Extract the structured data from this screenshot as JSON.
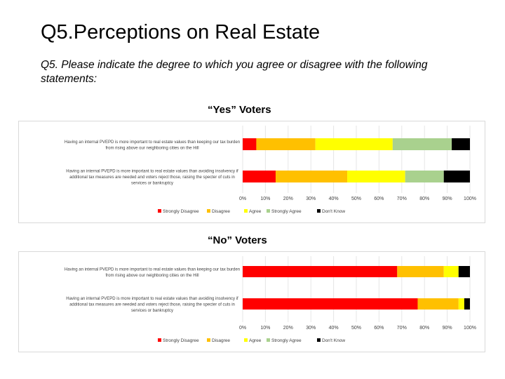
{
  "slide": {
    "title": "Q5.Perceptions on Real Estate",
    "subtitle": "Q5. Please indicate the degree to which you agree or disagree with the following statements:"
  },
  "colors": {
    "Strongly Disagree": "#ff0000",
    "Disagree": "#ffc000",
    "Agree": "#ffff00",
    "Strongly Agree": "#a9d18e",
    "Don't Know": "#000000"
  },
  "chart_data": [
    {
      "type": "bar",
      "orientation": "horizontal-stacked",
      "title": "“Yes” Voters",
      "categories": [
        "Having an internal PVEPD is more important to real estate values than keeping our tax burden from rising above our neighboring cities on the Hill",
        "Having an internal PVEPD is more important to real estate values than avoiding insolvency if additional tax measures are needed and voters reject those, raising the specter of cuts in services or bankruptcy"
      ],
      "category_lines": [
        [
          "Having an internal PVEPD is more important to real estate values than keeping our tax burden",
          "from rising above our neighboring cities on the Hill"
        ],
        [
          "Having an internal PVEPD is more important to real estate values than avoiding insolvency if",
          "additional tax measures are needed and voters reject those, raising the specter of cuts in",
          "services or bankruptcy"
        ]
      ],
      "series": [
        {
          "name": "Strongly Disagree",
          "values": [
            6,
            14.5
          ]
        },
        {
          "name": "Disagree",
          "values": [
            26,
            31.5
          ]
        },
        {
          "name": "Agree",
          "values": [
            34,
            25.5
          ]
        },
        {
          "name": "Strongly Agree",
          "values": [
            26,
            17
          ]
        },
        {
          "name": "Don't Know",
          "values": [
            8,
            11.5
          ]
        }
      ],
      "xlim": [
        0,
        100
      ],
      "x_ticks": [
        "0%",
        "10%",
        "20%",
        "30%",
        "40%",
        "50%",
        "60%",
        "70%",
        "80%",
        "90%",
        "100%"
      ],
      "legend": "bottom"
    },
    {
      "type": "bar",
      "orientation": "horizontal-stacked",
      "title": "“No” Voters",
      "categories": [
        "Having an internal PVEPD is more important to real estate values than keeping our tax burden from rising above our neighboring cities on the Hill",
        "Having an internal PVEPD is more important to real estate values than avoiding insolvency if additional tax measures are needed and voters reject those, raising the specter of cuts in services or bankruptcy"
      ],
      "category_lines": [
        [
          "Having an internal PVEPD is more important to real estate values than keeping our tax burden",
          "from rising above our neighboring cities on the Hill"
        ],
        [
          "Having an internal PVEPD is more important to real estate values than avoiding insolvency if",
          "additional tax measures are needed and voters reject those, raising the specter of cuts in",
          "services or bankruptcy"
        ]
      ],
      "series": [
        {
          "name": "Strongly Disagree",
          "values": [
            68,
            77
          ]
        },
        {
          "name": "Disagree",
          "values": [
            20.5,
            18
          ]
        },
        {
          "name": "Agree",
          "values": [
            6.5,
            2.5
          ]
        },
        {
          "name": "Strongly Agree",
          "values": [
            0,
            0
          ]
        },
        {
          "name": "Don't Know",
          "values": [
            5,
            2.5
          ]
        }
      ],
      "xlim": [
        0,
        100
      ],
      "x_ticks": [
        "0%",
        "10%",
        "20%",
        "30%",
        "40%",
        "50%",
        "60%",
        "70%",
        "80%",
        "90%",
        "100%"
      ],
      "legend": "bottom"
    }
  ]
}
